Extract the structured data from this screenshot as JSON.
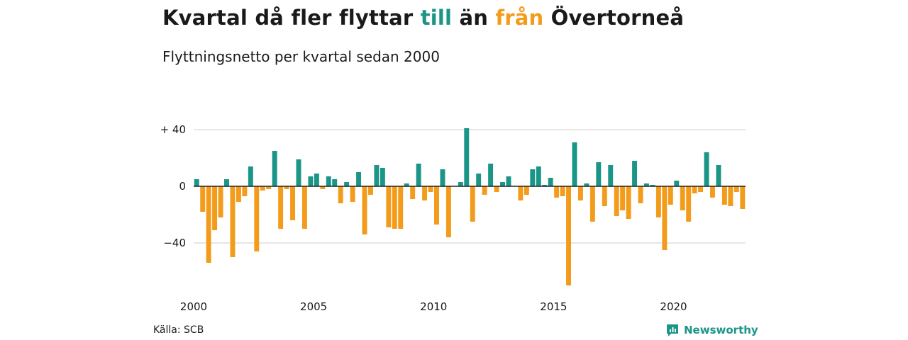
{
  "title": {
    "part1": "Kvartal då fler flyttar ",
    "till": "till",
    "part2": " än ",
    "fran": "från",
    "part3": " Övertorneå"
  },
  "subtitle": "Flyttningsnetto per kvartal sedan 2000",
  "source": "Källa: SCB",
  "brand": {
    "name": "Newsworthy",
    "icon": "newsworthy-logo-icon"
  },
  "colors": {
    "positive": "#1a9588",
    "negative": "#f39c1b",
    "grid": "#dddddd",
    "zero": "#222222"
  },
  "chart_data": {
    "type": "bar",
    "title": "Kvartal då fler flyttar till än från Övertorneå",
    "subtitle": "Flyttningsnetto per kvartal sedan 2000",
    "x_start_year": 2000,
    "periods_per_year": 4,
    "ylim": [
      -70,
      42
    ],
    "yticks": [
      40,
      0,
      -40
    ],
    "ytick_labels": [
      "+ 40",
      "0",
      "−40"
    ],
    "xticks": [
      2000,
      2005,
      2010,
      2015,
      2020
    ],
    "xtick_labels": [
      "2000",
      "2005",
      "2010",
      "2015",
      "2020"
    ],
    "grid": true,
    "values": [
      5,
      -18,
      -54,
      -31,
      -22,
      5,
      -50,
      -11,
      -7,
      14,
      -46,
      -3,
      -2,
      25,
      -30,
      -2,
      -24,
      19,
      -30,
      7,
      9,
      -2,
      7,
      5,
      -12,
      3,
      -11,
      10,
      -34,
      -6,
      15,
      13,
      -29,
      -30,
      -30,
      2,
      -9,
      16,
      -10,
      -4,
      -27,
      12,
      -36,
      0,
      3,
      41,
      -25,
      9,
      -6,
      16,
      -4,
      3,
      7,
      0,
      -10,
      -6,
      12,
      14,
      1,
      6,
      -8,
      -7,
      -70,
      31,
      -10,
      2,
      -25,
      17,
      -14,
      15,
      -21,
      -17,
      -23,
      18,
      -12,
      2,
      1,
      -22,
      -45,
      -13,
      4,
      -17,
      -25,
      -5,
      -4,
      24,
      -8,
      15,
      -13,
      -14,
      -4,
      -16
    ]
  }
}
